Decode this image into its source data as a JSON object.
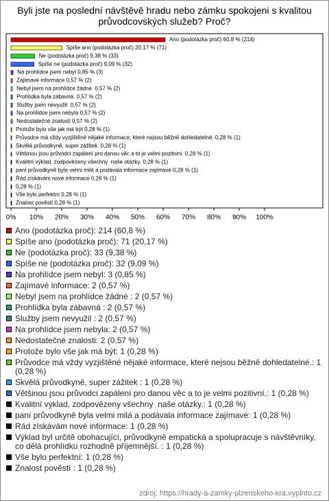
{
  "chart_data": {
    "type": "bar",
    "orientation": "horizontal",
    "title": "Byli jste na poslední návštěvě hradu nebo zámku spokojeni s kvalitou průvodcovských služeb? Proč?",
    "values": [
      60.8,
      20.17,
      9.38,
      9.09,
      0.85,
      0.57,
      0.57,
      0.57,
      0.57,
      0.57,
      0.57,
      0.28,
      0.28,
      0.28,
      0.28,
      0.28,
      0.28,
      0.28,
      0.28,
      0.28,
      0.28
    ],
    "value_labels": [
      "Ano (podotázka proč) 60,8 % (214)",
      "Spíše ano (podotázka proč) 20,17 % (71)",
      "Ne (podotázka proč) 9,38 % (33)",
      "Spíše ne (podotázka proč) 9,09 % (32)",
      "Na prohlídce jsem nebyl 0,85 % (3)",
      "Zajímavé informace 0,57 % (2)",
      "Nebyl jsem na prohlídce žádné  0,57 % (2)",
      "Prohlídka byla zábavná  0,57 % (2)",
      "Služby jsem nevyužil  0,57 % (2)",
      "Na prohlídce jsem nebyla 0,57 % (2)",
      "Nedostatečné znalosti 0,57 % (2)",
      "Protože bylo vše jak má být 0,28 % (1)",
      "Průvodce má vždy vyzjištěné nějaké informace, které nejsou běžně dohledatelné. 0,28 % (1)",
      "Skvělá průvodkyně, super zážitek  0,28 % (1)",
      "Většinou jsou průvodci zapálení pro danou věc a to je velmi pozitivní. 0,28 % (1)",
      "Kvalitní výklad, zodpovězeny všechny  naše otázky. 0,28 % (1)",
      "paní průvodkyně byla velmi milá a podávala informace zajímavé 0,28 % (1)",
      "Rád získávám nové informace 0,28 % (1)",
      "0,28 % (1)",
      "Vše bylo perfektní 0,28 % (1)",
      "Znalost pověstí 0,28 % (1)"
    ],
    "legend_labels": [
      "Ano (podotázka proč): 214 (60,8 %)",
      "Spíše ano (podotázka proč): 71 (20,17 %)",
      "Ne (podotázka proč): 33 (9,38 %)",
      "Spíše ne (podotázka proč): 32 (9,09 %)",
      "Na prohlídce jsem nebyl: 3 (0,85 %)",
      "Zajímavé informace: 2 (0,57 %)",
      "Nebyl jsem na prohlídce žádné : 2 (0,57 %)",
      "Prohlídka byla zábavná : 2 (0,57 %)",
      "Služby jsem nevyužil : 2 (0,57 %)",
      "Na prohlídce jsem nebyla: 2 (0,57 %)",
      "Nedostatečné znalosti: 2 (0,57 %)",
      "Protože bylo vše jak má být: 1 (0,28 %)",
      "Průvodce má vždy vyzjištěné nějaké informace, které nejsou běžně dohledatelné.: 1 (0,28 %)",
      "Skvělá průvodkyně, super zážitek : 1 (0,28 %)",
      "Většinou jsou průvodci zapálení pro danou věc a to je velmi pozitivní.: 1 (0,28 %)",
      "Kvalitní výklad, zodpovězeny všechny  naše otázky.: 1 (0,28 %)",
      "paní průvodkyně byla velmi milá a podávala informace zajímavé: 1 (0,28 %)",
      "Rád získávám nové informace: 1 (0,28 %)",
      "Výklad byl určitě obohacující, průvodkyně empatická a spolupracuje s návštěvníky, co dělá prohlídku rozhodně příjemnější. : 1 (0,28 %)",
      "Vše bylo perfektní: 1 (0,28 %)",
      "Znalost pověstí : 1 (0,28 %)"
    ],
    "colors": [
      "#cc0000",
      "#ffff66",
      "#33cc33",
      "#3366ff",
      "#6633cc",
      "#ff6633",
      "#99ff66",
      "#339966",
      "#3f7f7f",
      "#cc33cc",
      "#ff9933",
      "#ffaa00",
      "#66cc33",
      "#3399ff",
      "#3366cc",
      "#000000",
      "#000000",
      "#000000",
      "#000000",
      "#000000",
      "#000000"
    ],
    "xlim": [
      0,
      100
    ],
    "xticks": [
      {
        "value": 0,
        "label": "0%"
      },
      {
        "value": 10,
        "label": "10%"
      },
      {
        "value": 20,
        "label": "20%"
      },
      {
        "value": 30,
        "label": "30%"
      },
      {
        "value": 40,
        "label": "40%"
      },
      {
        "value": 50,
        "label": "50%"
      },
      {
        "value": 60,
        "label": "60%"
      },
      {
        "value": 70,
        "label": "70%"
      },
      {
        "value": 80,
        "label": "80%"
      },
      {
        "value": 90,
        "label": "90%"
      },
      {
        "value": 100,
        "label": "100%"
      }
    ],
    "grid": false,
    "source": "zdroj: https://hrady-a-zamky-plzenskeho-kra.vyplnto.cz"
  }
}
